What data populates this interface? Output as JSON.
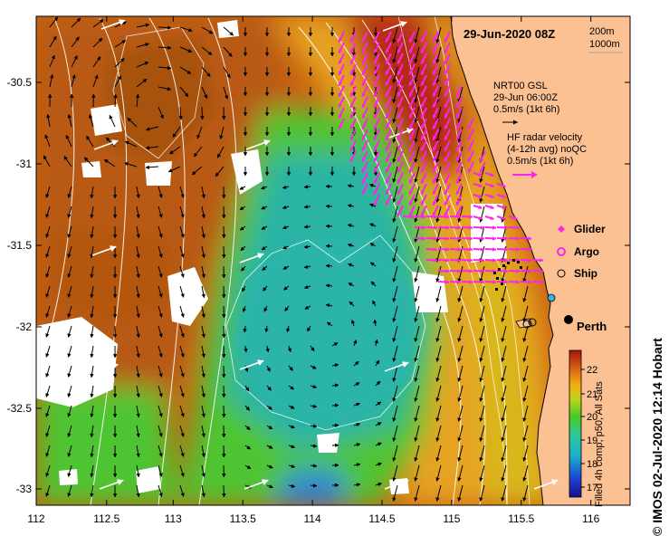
{
  "title": "29-Jun-2020 08Z",
  "depth_legend": [
    "200m",
    "1000m"
  ],
  "gsl": {
    "line1": "NRT00 GSL",
    "line2": "29-Jun 06:00Z",
    "line3": "0.5m/s (1kt 6h)"
  },
  "hf": {
    "line1": "HF radar velocity",
    "line2": "(4-12h avg) noQC",
    "line3": "0.5m/s (1kt 6h)"
  },
  "legend": {
    "glider": "Glider",
    "argo": "Argo",
    "ship": "Ship"
  },
  "city": "Perth",
  "credit": "© IMOS 02-Jul-2020 12:14 Hobart",
  "colorbar": {
    "caption": "Filled 4h comp, p50, All Sats",
    "ticks": [
      "22",
      "21",
      "20",
      "19",
      "18",
      "17"
    ]
  },
  "axes": {
    "x_ticks": [
      "112",
      "112.5",
      "113",
      "113.5",
      "114",
      "114.5",
      "115",
      "115.5",
      "116"
    ],
    "y_ticks": [
      "-30.5",
      "-31",
      "-31.5",
      "-32",
      "-32.5",
      "-33"
    ]
  },
  "colors": {
    "land": "#fbc193",
    "cloud": "#ffffff",
    "hf_arrow": "#ff22ee",
    "glider": "#ff22ee"
  }
}
